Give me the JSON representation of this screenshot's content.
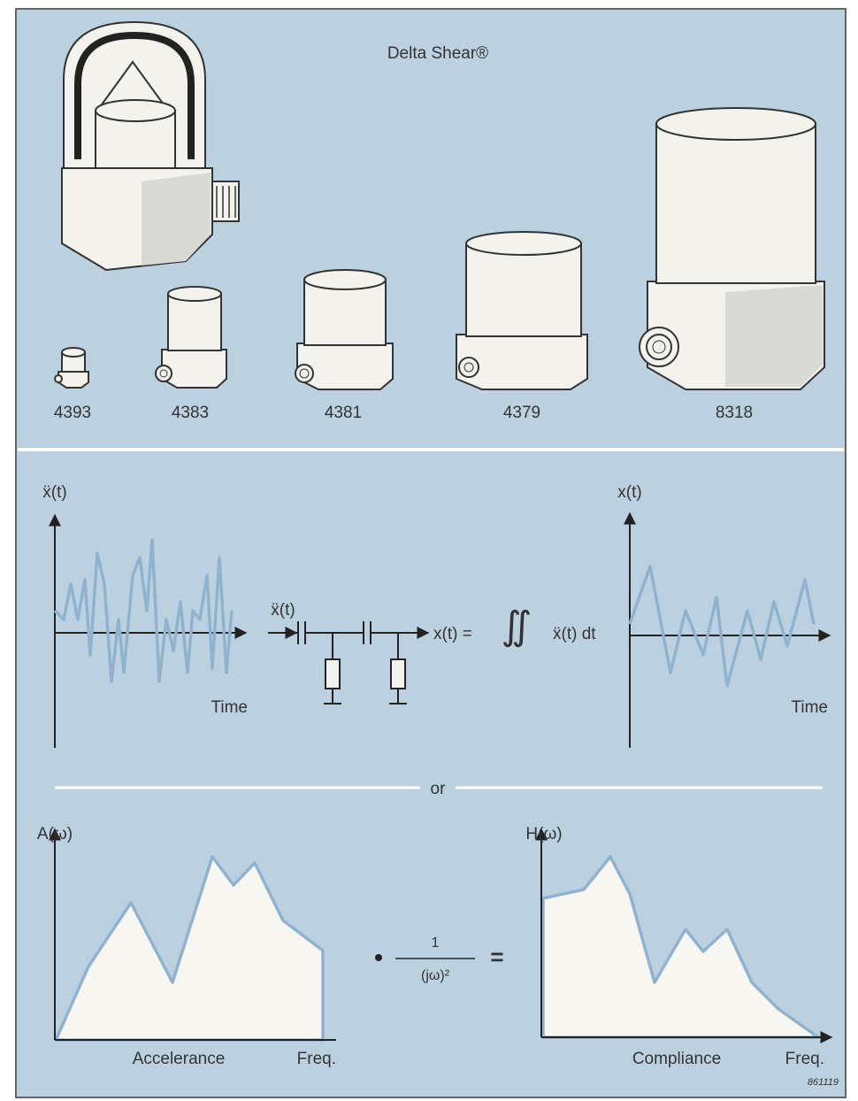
{
  "header": {
    "title": "Delta Shear®"
  },
  "accelerometers": [
    {
      "label": "4393"
    },
    {
      "label": "4383"
    },
    {
      "label": "4381"
    },
    {
      "label": "4379"
    },
    {
      "label": "8318"
    }
  ],
  "time_domain": {
    "input_axis_label": "ẍ(t)",
    "input_time_label": "Time",
    "circuit_input": "ẍ(t)",
    "equation_lhs": "x(t) =",
    "integral_sign": "∬",
    "integrand": "ẍ(t) dt",
    "output_axis_label": "x(t)",
    "output_time_label": "Time"
  },
  "separator": "or",
  "frequency_domain": {
    "input_axis_label": "A(ω)",
    "input_name": "Accelerance",
    "input_freq_label": "Freq.",
    "factor_numerator": "1",
    "factor_denominator": "(jω)²",
    "equals": "=",
    "output_axis_label": "H(ω)",
    "output_name": "Compliance",
    "output_freq_label": "Freq."
  },
  "footer": {
    "code": "861119"
  }
}
